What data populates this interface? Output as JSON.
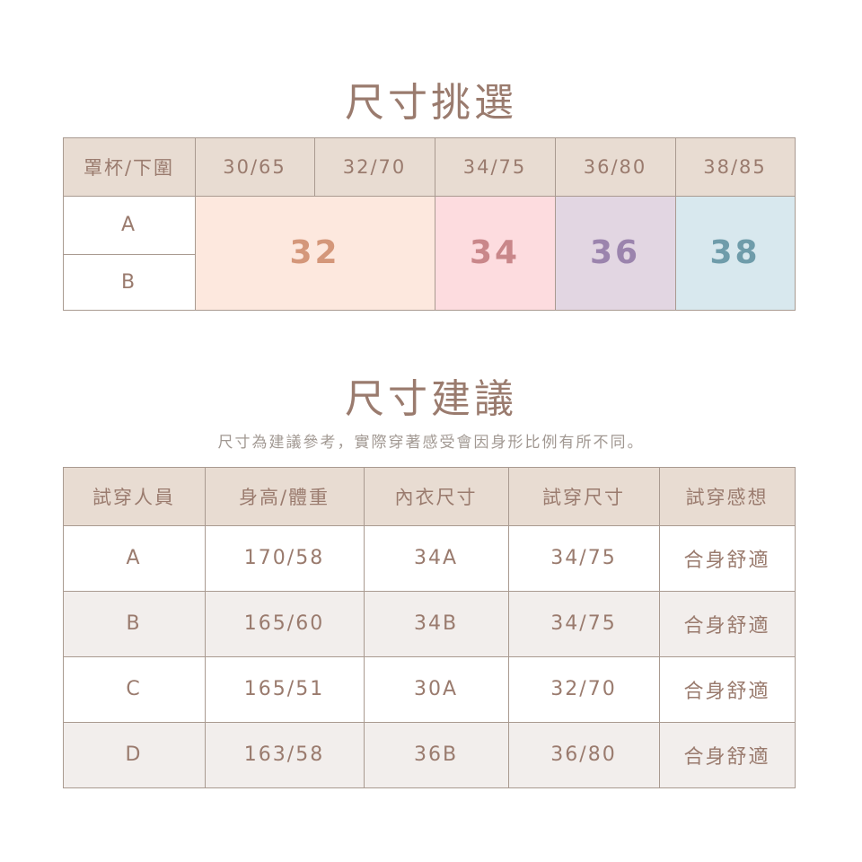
{
  "size_chart": {
    "title": "尺寸挑選",
    "corner_header": "罩杯/下圍",
    "columns": [
      "30/65",
      "32/70",
      "34/75",
      "36/80",
      "38/85"
    ],
    "rows": [
      "A",
      "B"
    ],
    "sizes": [
      {
        "label": "32",
        "bg": "#fde8de",
        "color": "#d4977a"
      },
      {
        "label": "34",
        "bg": "#fddcdf",
        "color": "#c9878a"
      },
      {
        "label": "36",
        "bg": "#e2d6e2",
        "color": "#9b84ad"
      },
      {
        "label": "38",
        "bg": "#d8e8ee",
        "color": "#6f9caa"
      }
    ]
  },
  "suggestion": {
    "title": "尺寸建議",
    "subtitle": "尺寸為建議參考，實際穿著感受會因身形比例有所不同。",
    "headers": [
      "試穿人員",
      "身高/體重",
      "內衣尺寸",
      "試穿尺寸",
      "試穿感想"
    ],
    "rows": [
      [
        "A",
        "170/58",
        "34A",
        "34/75",
        "合身舒適"
      ],
      [
        "B",
        "165/60",
        "34B",
        "34/75",
        "合身舒適"
      ],
      [
        "C",
        "165/51",
        "30A",
        "32/70",
        "合身舒適"
      ],
      [
        "D",
        "163/58",
        "36B",
        "36/80",
        "合身舒適"
      ]
    ]
  },
  "colors": {
    "header_bg": "#e8dcd2",
    "text": "#9a7b6e",
    "border": "#a99a90",
    "alt_row": "#f2eeec"
  }
}
